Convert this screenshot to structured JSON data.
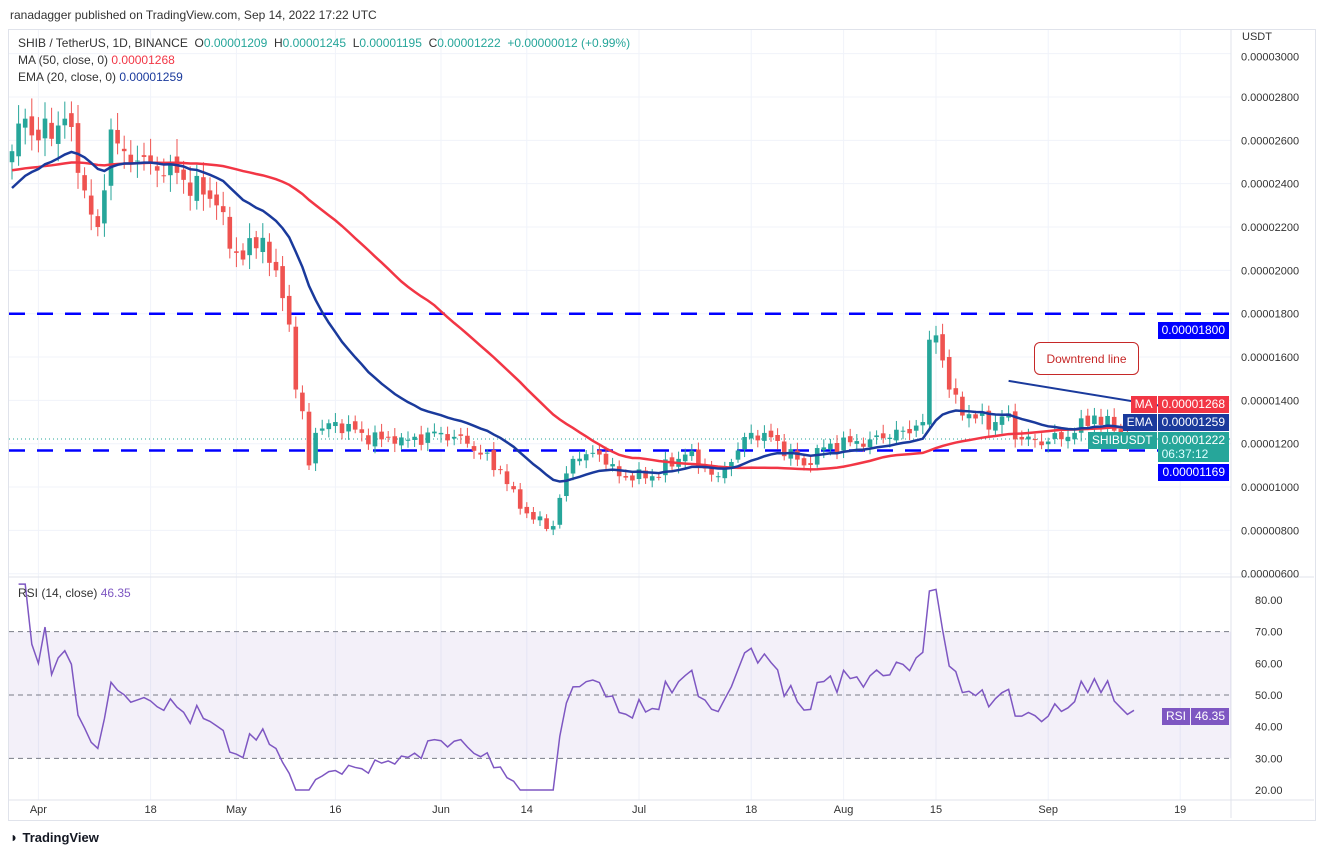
{
  "header": "ranadagger published on TradingView.com, Sep 14, 2022 17:22 UTC",
  "legend": {
    "symbol": "SHIB / TetherUS, 1D, BINANCE",
    "o_label": "O",
    "o": "0.00001209",
    "h_label": "H",
    "h": "0.00001245",
    "l_label": "L",
    "l": "0.00001195",
    "c_label": "C",
    "c": "0.00001222",
    "change": "+0.00000012 (+0.99%)",
    "ma_label": "MA (50, close, 0)",
    "ma": "0.00001268",
    "ema_label": "EMA (20, close, 0)",
    "ema": "0.00001259",
    "rsi_label": "RSI (14, close)",
    "rsi": "46.35"
  },
  "axis": {
    "currency": "USDT",
    "ticks": [
      "0.00003000",
      "0.00002800",
      "0.00002600",
      "0.00002400",
      "0.00002200",
      "0.00002000",
      "0.00001800",
      "0.00001600",
      "0.00001400",
      "0.00001200",
      "0.00001000",
      "0.00000800",
      "0.00000600"
    ],
    "rsi_ticks": [
      "80.00",
      "70.00",
      "60.00",
      "50.00",
      "40.00",
      "30.00",
      "20.00"
    ],
    "x_ticks": [
      "Apr",
      "18",
      "May",
      "16",
      "Jun",
      "14",
      "Jul",
      "18",
      "Aug",
      "15",
      "Sep",
      "19"
    ]
  },
  "tags": {
    "level_high": "0.00001800",
    "ma_name": "MA",
    "ma": "0.00001268",
    "ema_name": "EMA",
    "ema": "0.00001259",
    "sym": "SHIBUSDT",
    "last": "0.00001222",
    "countdown": "06:37:12",
    "level_low": "0.00001169",
    "rsi_name": "RSI",
    "rsi": "46.35"
  },
  "annotation": "Downtrend line",
  "footer": "TradingView",
  "colors": {
    "up": "#26a69a",
    "down": "#ef5350",
    "ma": "#f23645",
    "ema": "#1a3a9c",
    "level": "#0000ff",
    "rsi": "#7e57c2"
  },
  "chart_data": {
    "type": "candlestick",
    "start_date": "2022-03-28",
    "unit": "1e-6 USDT",
    "close_keypoints": [
      [
        0,
        25.5
      ],
      [
        2,
        27
      ],
      [
        4,
        26
      ],
      [
        8,
        27
      ],
      [
        10,
        24.5
      ],
      [
        13,
        22
      ],
      [
        15,
        26.5
      ],
      [
        17,
        25.5
      ],
      [
        21,
        25
      ],
      [
        25,
        24.5
      ],
      [
        29,
        23.5
      ],
      [
        31,
        23
      ],
      [
        33,
        21
      ],
      [
        35,
        20.5
      ],
      [
        38,
        21.5
      ],
      [
        40,
        20
      ],
      [
        42,
        17.5
      ],
      [
        43,
        14.5
      ],
      [
        44,
        13.5
      ],
      [
        45,
        11
      ],
      [
        46,
        12.5
      ],
      [
        49,
        13
      ],
      [
        53,
        12.5
      ],
      [
        58,
        12
      ],
      [
        65,
        12.5
      ],
      [
        69,
        12
      ],
      [
        74,
        10.8
      ],
      [
        77,
        9
      ],
      [
        79,
        8.5
      ],
      [
        82,
        8.2
      ],
      [
        83,
        9.5
      ],
      [
        85,
        11.3
      ],
      [
        89,
        11.5
      ],
      [
        92,
        10.5
      ],
      [
        97,
        10.5
      ],
      [
        102,
        11.5
      ],
      [
        107,
        10.5
      ],
      [
        112,
        12.5
      ],
      [
        115,
        12.3
      ],
      [
        120,
        11
      ],
      [
        122,
        11.8
      ],
      [
        130,
        12.2
      ],
      [
        135,
        12.6
      ],
      [
        138,
        13
      ],
      [
        139,
        16.8
      ],
      [
        140,
        17
      ],
      [
        142,
        14.5
      ],
      [
        144,
        13.3
      ],
      [
        149,
        13
      ],
      [
        151,
        13.4
      ],
      [
        152,
        12.2
      ],
      [
        157,
        12.1
      ],
      [
        161,
        12.5
      ],
      [
        164,
        13.3
      ],
      [
        167,
        12.6
      ],
      [
        169,
        12.1
      ],
      [
        170,
        12.22
      ]
    ],
    "levels": [
      18.0,
      11.69
    ],
    "trendline": [
      [
        151,
        14.9
      ],
      [
        177,
        13.6
      ]
    ],
    "rsi_levels": [
      70,
      50,
      30
    ],
    "price_range": [
      6,
      30
    ],
    "rsi_range": [
      20,
      85
    ]
  }
}
